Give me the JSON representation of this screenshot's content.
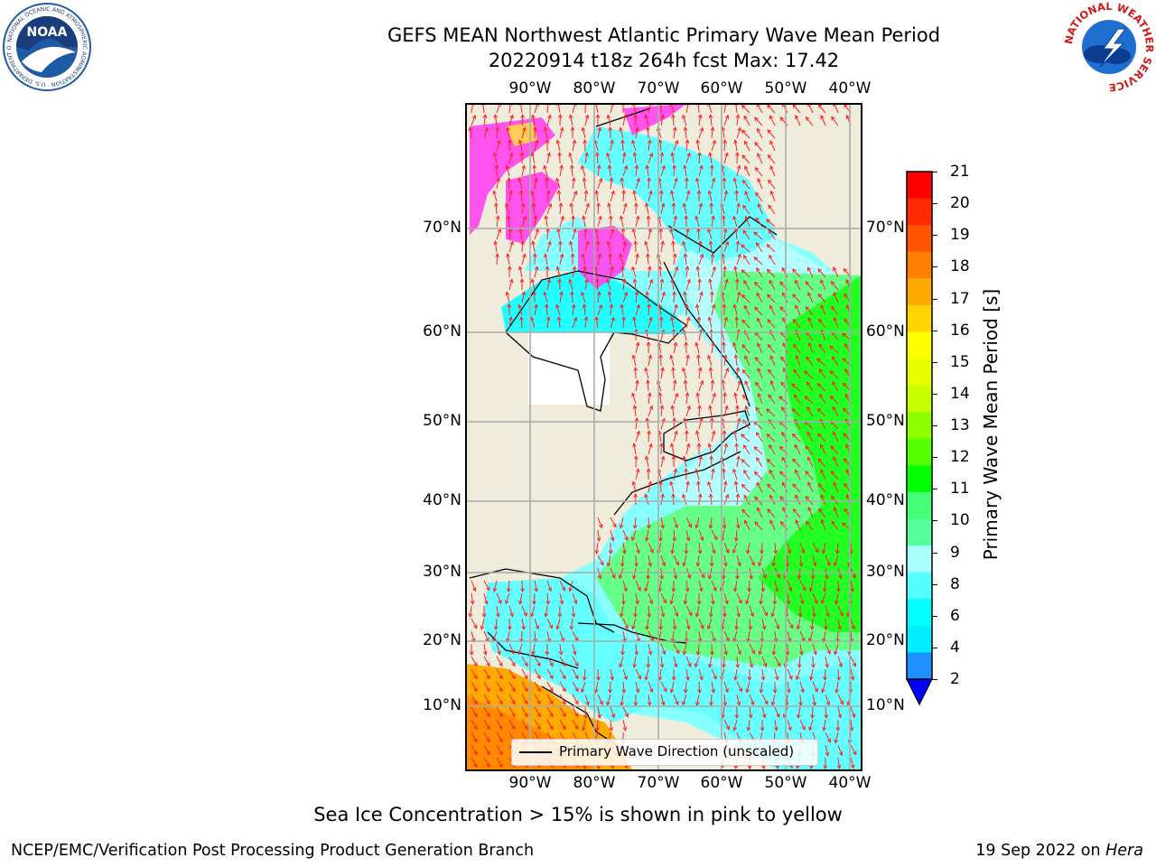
{
  "title": {
    "line1": "GEFS MEAN Northwest Atlantic Primary Wave Mean Period",
    "line2": "20220914 t18z 264h fcst   Max: 17.42"
  },
  "map": {
    "lon_labels": [
      "90°W",
      "80°W",
      "70°W",
      "60°W",
      "50°W",
      "40°W"
    ],
    "lat_labels": [
      "70°N",
      "60°N",
      "50°N",
      "40°N",
      "30°N",
      "20°N",
      "10°N"
    ],
    "legend_label": "Primary Wave Direction (unscaled)",
    "colors": {
      "land": "#efecdc",
      "ice_pink": "#ff44ee",
      "arrow": "#ff2020"
    }
  },
  "colorbar": {
    "label": "Primary Wave Mean Period [s]",
    "ticks": [
      "21",
      "20",
      "19",
      "18",
      "17",
      "16",
      "15",
      "14",
      "13",
      "12",
      "11",
      "10",
      "9",
      "8",
      "6",
      "4",
      "2"
    ],
    "colors_top_to_bottom": [
      "#ff0000",
      "#ff2a00",
      "#ff5500",
      "#ff7f00",
      "#ffaa00",
      "#ffd400",
      "#ffff00",
      "#e6ff00",
      "#c8ff00",
      "#8cff00",
      "#55ff00",
      "#00ff00",
      "#44ff77",
      "#55ff99",
      "#aaffff",
      "#55ffff",
      "#00ffff",
      "#00eeff",
      "#1e90ff"
    ],
    "under_color": "#0000ff"
  },
  "caption": "Sea Ice Concentration > 15% is shown in pink to yellow",
  "footer": {
    "left": "NCEP/EMC/Verification Post Processing Product Generation Branch",
    "right_date": "19 Sep 2022 on ",
    "right_host": "Hera"
  },
  "logos": {
    "noaa_text": "NOAA",
    "noaa_ring": "NATIONAL OCEANIC AND ATMOSPHERIC ADMINISTRATION · U.S. DEPARTMENT OF COMMERCE",
    "nws_ring": "NATIONAL WEATHER SERVICE"
  }
}
